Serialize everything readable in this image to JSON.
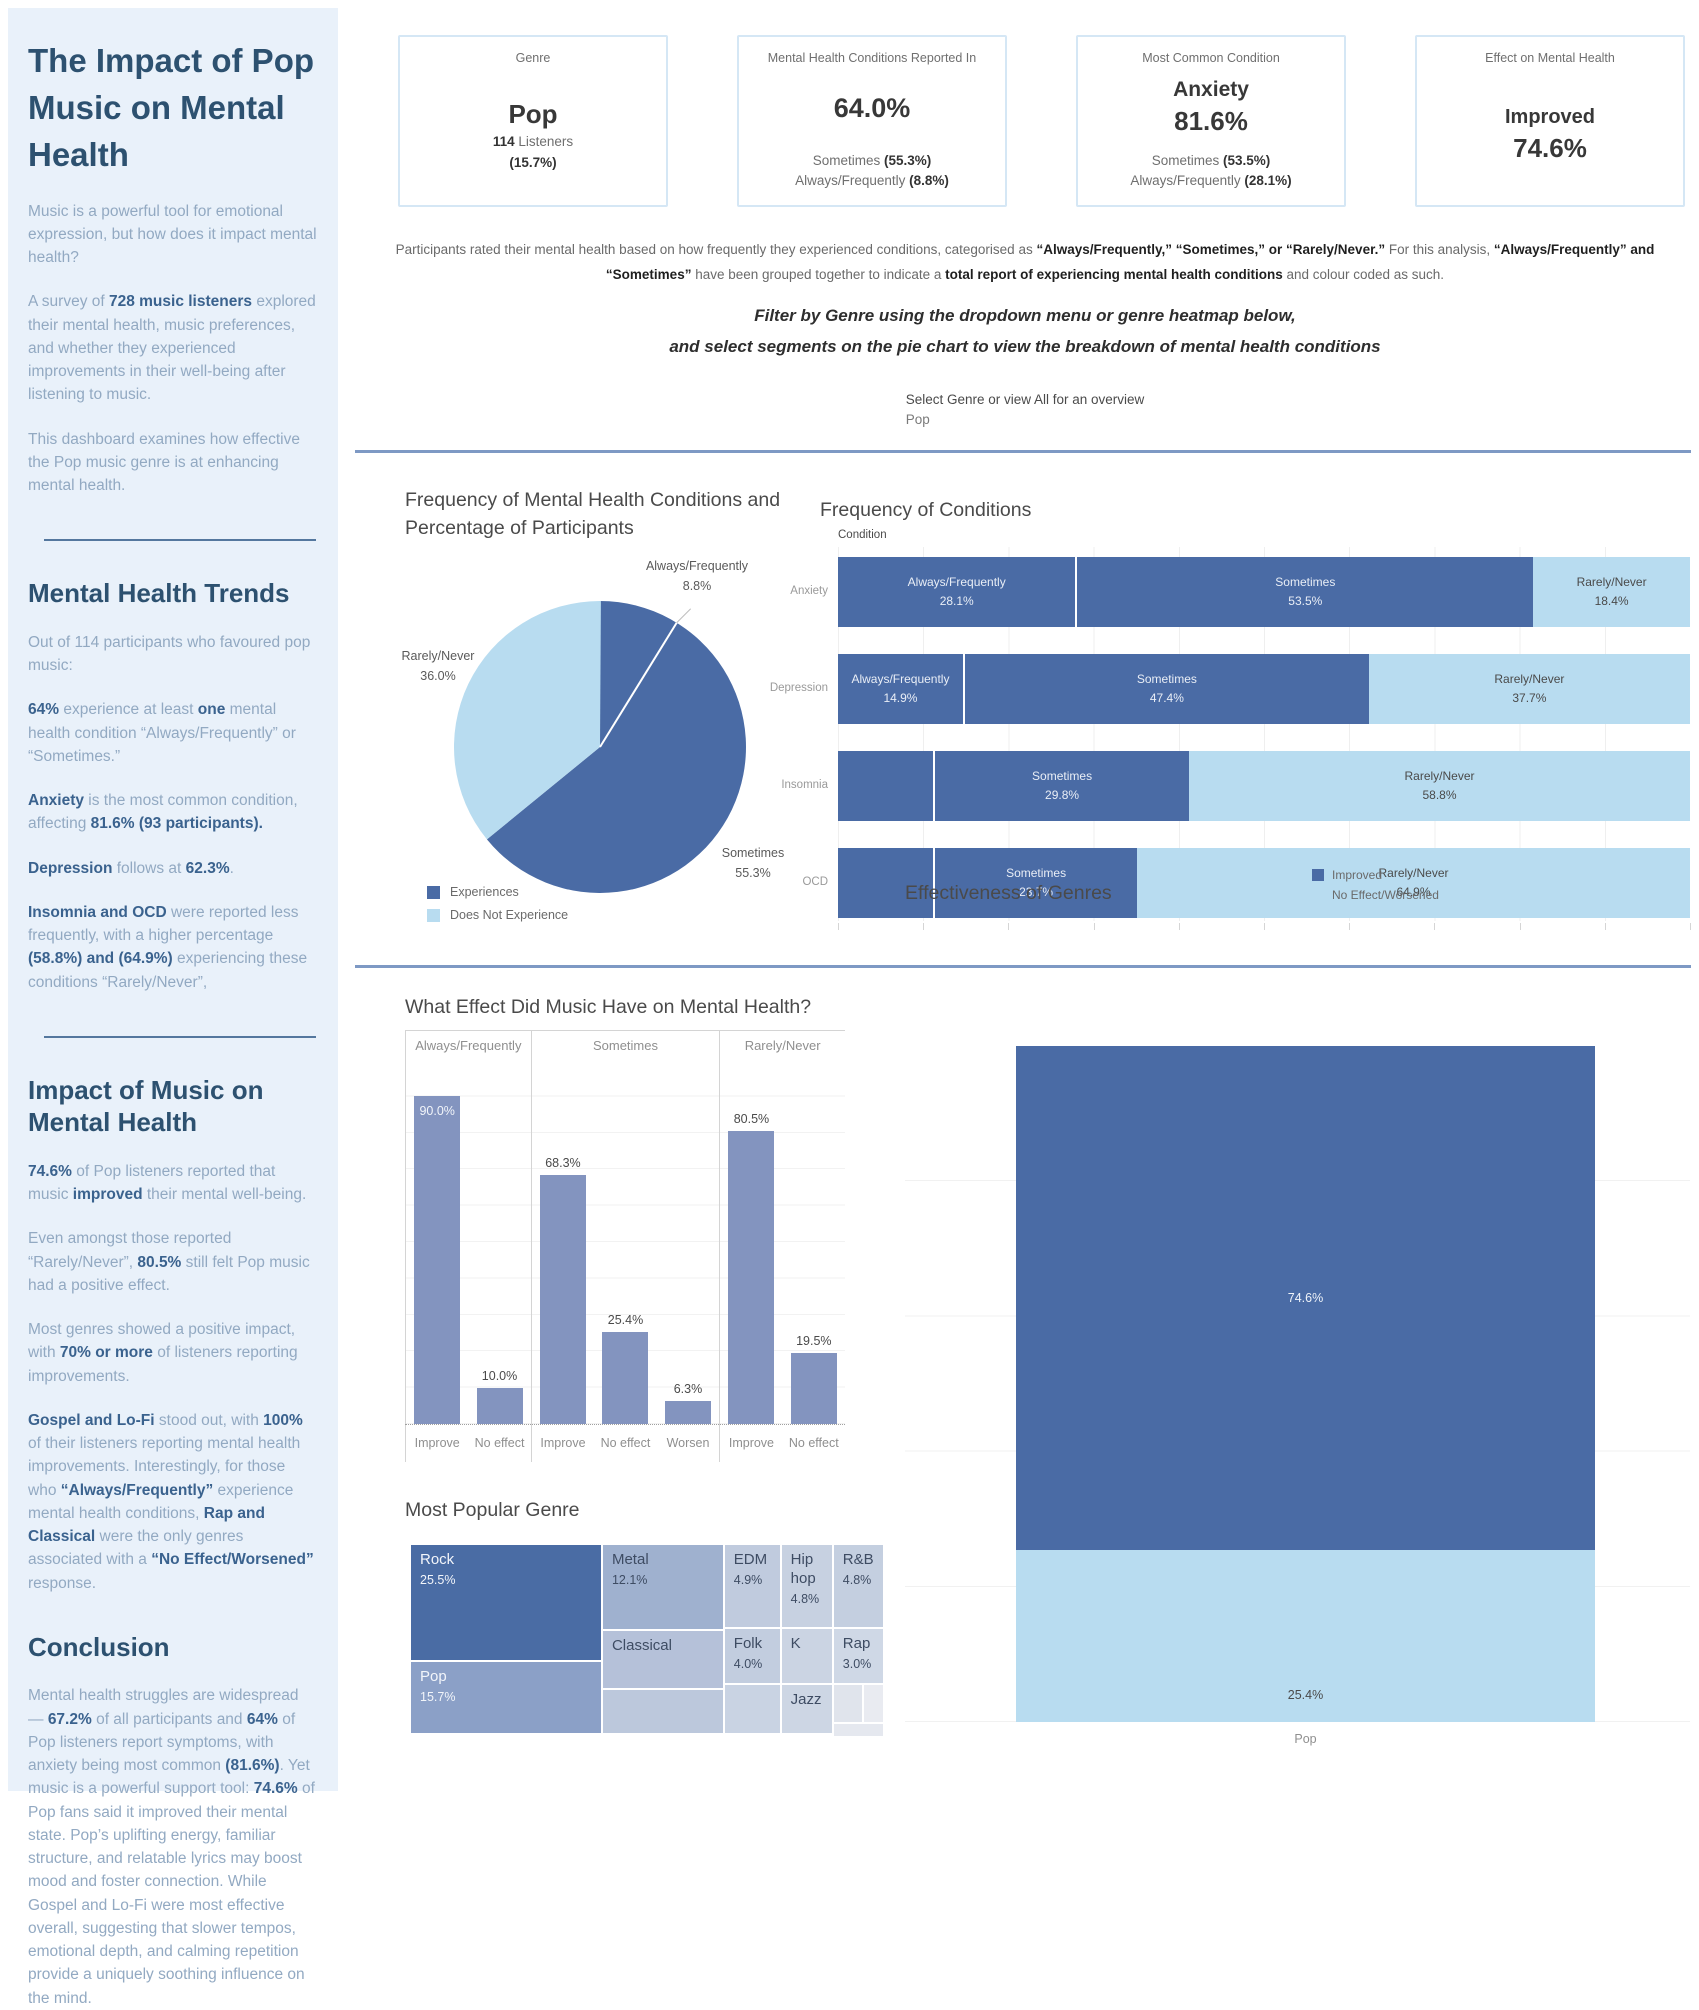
{
  "colors": {
    "dark": "#4A6BA5",
    "light": "#B8DCF0",
    "bar": "#8394BF",
    "divider": "#7E99C4"
  },
  "sidebar": {
    "title": "The Impact of Pop Music on Mental Health",
    "intro": [
      [
        {
          "t": "Music is a powerful tool for emotional expression, but how does it impact mental health?"
        }
      ],
      [
        {
          "t": "A survey of "
        },
        {
          "t": "728 music listeners",
          "b": 1
        },
        {
          "t": " explored their mental health, music preferences, and whether they experienced improvements in their well-being after listening to music."
        }
      ],
      [
        {
          "t": "This dashboard examines how effective the Pop music genre is at enhancing mental health."
        }
      ]
    ],
    "sections": [
      {
        "heading": "Mental Health Trends",
        "divider": true,
        "paragraphs": [
          [
            {
              "t": "Out of 114 participants who favoured pop music:"
            }
          ],
          [
            {
              "t": "64%",
              "b": 1
            },
            {
              "t": " experience at least "
            },
            {
              "t": "one",
              "b": 1
            },
            {
              "t": " mental health condition “Always/Frequently” or “Sometimes.”"
            }
          ],
          [
            {
              "t": "Anxiety",
              "b": 1
            },
            {
              "t": " is the most common condition, affecting "
            },
            {
              "t": "81.6% (93 participants).",
              "b": 1
            }
          ],
          [
            {
              "t": "Depression",
              "b": 1
            },
            {
              "t": " follows at "
            },
            {
              "t": "62.3%",
              "b": 1
            },
            {
              "t": "."
            }
          ],
          [
            {
              "t": "Insomnia and OCD",
              "b": 1
            },
            {
              "t": " were reported less frequently, with a higher percentage "
            },
            {
              "t": "(58.8%) and (64.9%)",
              "b": 1
            },
            {
              "t": " experiencing these conditions “Rarely/Never”,"
            }
          ]
        ]
      },
      {
        "heading": "Impact of Music on Mental Health",
        "divider": true,
        "paragraphs": [
          [
            {
              "t": "74.6%",
              "b": 1
            },
            {
              "t": " of Pop listeners reported that music "
            },
            {
              "t": "improved",
              "b": 1
            },
            {
              "t": " their mental well-being."
            }
          ],
          [
            {
              "t": "Even amongst those reported “Rarely/Never”, "
            },
            {
              "t": "80.5%",
              "b": 1
            },
            {
              "t": " still felt Pop music had a positive effect."
            }
          ],
          [
            {
              "t": "Most genres showed a positive impact, with "
            },
            {
              "t": "70% or more",
              "b": 1
            },
            {
              "t": " of listeners reporting improvements."
            }
          ],
          [
            {
              "t": "Gospel and Lo-Fi",
              "b": 1
            },
            {
              "t": " stood out, with "
            },
            {
              "t": "100%",
              "b": 1
            },
            {
              "t": " of their listeners reporting mental health improvements. Interestingly, for those who "
            },
            {
              "t": "“Always/Frequently”",
              "b": 1
            },
            {
              "t": " experience mental health conditions, "
            },
            {
              "t": "Rap and Classical",
              "b": 1
            },
            {
              "t": " were the only genres associated with a "
            },
            {
              "t": "“No Effect/Worsened”",
              "b": 1
            },
            {
              "t": " response."
            }
          ]
        ]
      },
      {
        "heading": "Conclusion",
        "divider": false,
        "paragraphs": [
          [
            {
              "t": "Mental health struggles are widespread — "
            },
            {
              "t": "67.2%",
              "b": 1
            },
            {
              "t": " of all participants and "
            },
            {
              "t": "64%",
              "b": 1
            },
            {
              "t": " of Pop listeners report symptoms, with anxiety being most common "
            },
            {
              "t": "(81.6%)",
              "b": 1
            },
            {
              "t": ". Yet music is a powerful support tool: "
            },
            {
              "t": "74.6%",
              "b": 1
            },
            {
              "t": " of Pop fans said it improved their mental state. Pop’s uplifting energy, familiar structure, and relatable lyrics may boost mood and foster connection. While Gospel and Lo-Fi were most effective overall, suggesting that slower tempos, emotional depth, and calming repetition provide a uniquely soothing influence on the mind."
            }
          ]
        ]
      }
    ]
  },
  "kpi_cards": [
    {
      "title": "Genre",
      "value_lines": [
        {
          "t": "Pop",
          "s": 26
        }
      ],
      "tight": true,
      "subs": [
        [
          {
            "t": "114 ",
            "b": 1
          },
          {
            "t": "Listeners"
          }
        ],
        [
          {
            "t": "(15.7%)",
            "b": 1
          }
        ]
      ]
    },
    {
      "title": "Mental Health Conditions Reported In",
      "value_lines": [
        {
          "t": "64.0%",
          "s": 27
        }
      ],
      "tight": false,
      "subs": [
        [
          {
            "t": "Sometimes "
          },
          {
            "t": "(55.3%)",
            "b": 1
          }
        ],
        [
          {
            "t": "Always/Frequently "
          },
          {
            "t": "(8.8%)",
            "b": 1
          }
        ]
      ]
    },
    {
      "title": "Most Common Condition",
      "value_lines": [
        {
          "t": "Anxiety",
          "s": 21
        },
        {
          "t": "81.6%",
          "s": 26
        }
      ],
      "tight": false,
      "subs": [
        [
          {
            "t": "Sometimes "
          },
          {
            "t": "(53.5%)",
            "b": 1
          }
        ],
        [
          {
            "t": "Always/Frequently "
          },
          {
            "t": "(28.1%)",
            "b": 1
          }
        ]
      ]
    },
    {
      "title": "Effect on Mental Health",
      "value_lines": [
        {
          "t": "Improved",
          "s": 20
        },
        {
          "t": "74.6%",
          "s": 26
        }
      ],
      "tight": false,
      "subs": []
    }
  ],
  "note": [
    {
      "t": "Participants rated their mental health based on how frequently they experienced conditions, categorised as "
    },
    {
      "t": "“Always/Frequently,” “Sometimes,” or “Rarely/Never.”",
      "b": 1
    },
    {
      "t": "  For this analysis, "
    },
    {
      "t": "“Always/Frequently” and “Sometimes”",
      "b": 1
    },
    {
      "t": " have been grouped together to indicate a "
    },
    {
      "t": "total report of experiencing mental health conditions",
      "b": 1
    },
    {
      "t": " and colour coded as such."
    }
  ],
  "instructions": [
    "Filter by Genre using the dropdown menu or genre heatmap below,",
    "and select segments on the pie chart to view the breakdown of mental health conditions"
  ],
  "genre_select": {
    "label": "Select Genre or view All for an overview",
    "value": "Pop"
  },
  "chart_data": [
    {
      "id": "pie",
      "type": "pie",
      "title": "Frequency of Mental Health Conditions and Percentage of Participants",
      "slices": [
        {
          "label": "Always/Frequently",
          "value": 8.8,
          "display": "8.8%",
          "color": "dark"
        },
        {
          "label": "Sometimes",
          "value": 55.3,
          "display": "55.3%",
          "color": "dark"
        },
        {
          "label": "Rarely/Never",
          "value": 36.0,
          "display": "36.0%",
          "color": "light"
        }
      ],
      "legend": [
        {
          "label": "Experiences",
          "color": "dark"
        },
        {
          "label": "Does Not Experience",
          "color": "light"
        }
      ]
    },
    {
      "id": "conditions",
      "type": "bar",
      "subtype": "horizontal-stacked",
      "xlim": [
        0,
        100
      ],
      "grid": true,
      "title": "Frequency of Conditions",
      "axis_label": "Condition",
      "categories": [
        "Anxiety",
        "Depression",
        "Insomnia",
        "OCD"
      ],
      "series": [
        {
          "name": "Always/Frequently",
          "color": "dark",
          "values": [
            28.1,
            14.9,
            11.4,
            11.4
          ],
          "labeled": [
            1,
            1,
            0,
            0
          ]
        },
        {
          "name": "Sometimes",
          "color": "dark",
          "values": [
            53.5,
            47.4,
            29.8,
            23.7
          ],
          "labeled": [
            1,
            1,
            1,
            1
          ]
        },
        {
          "name": "Rarely/Never",
          "color": "light",
          "values": [
            18.4,
            37.7,
            58.8,
            64.9
          ],
          "labeled": [
            1,
            1,
            1,
            1
          ]
        }
      ]
    },
    {
      "id": "effect",
      "type": "bar",
      "ylim": [
        0,
        100
      ],
      "grid": true,
      "title": "What Effect Did Music Have on Mental Health?",
      "panels": [
        {
          "header": "Always/Frequently",
          "bars": [
            {
              "category": "Improve",
              "value": 90.0,
              "inside": true
            },
            {
              "category": "No effect",
              "value": 10.0
            }
          ]
        },
        {
          "header": "Sometimes",
          "bars": [
            {
              "category": "Improve",
              "value": 68.3
            },
            {
              "category": "No effect",
              "value": 25.4
            },
            {
              "category": "Worsen",
              "value": 6.3
            }
          ]
        },
        {
          "header": "Rarely/Never",
          "bars": [
            {
              "category": "Improve",
              "value": 80.5
            },
            {
              "category": "No effect",
              "value": 19.5
            }
          ]
        }
      ]
    },
    {
      "id": "treemap",
      "type": "heatmap",
      "title": "Most Popular Genre",
      "cells": [
        {
          "label": "Rock",
          "pct": "25.5%",
          "x": 0,
          "y": 0,
          "w": 40.5,
          "h": 61.7,
          "fill": "#4A6CA4",
          "text": "light"
        },
        {
          "label": "Pop",
          "pct": "15.7%",
          "x": 0,
          "y": 61.7,
          "w": 40.5,
          "h": 38.3,
          "fill": "#8BA0C7",
          "text": "light"
        },
        {
          "label": "Metal",
          "pct": "12.1%",
          "x": 40.5,
          "y": 0,
          "w": 25.7,
          "h": 45.4,
          "fill": "#9FB1CF",
          "text": "dark"
        },
        {
          "label": "Classical",
          "pct": "",
          "x": 40.5,
          "y": 45.4,
          "w": 25.7,
          "h": 31.1,
          "fill": "#B5C1D9",
          "text": "dark"
        },
        {
          "label": "",
          "pct": "",
          "x": 40.5,
          "y": 76.5,
          "w": 25.7,
          "h": 23.5,
          "fill": "#BCC8DC",
          "text": "dark"
        },
        {
          "label": "EDM",
          "pct": "4.9%",
          "x": 66.2,
          "y": 0,
          "w": 12.0,
          "h": 44.3,
          "fill": "#C0CBDE",
          "text": "dark"
        },
        {
          "label": "Folk",
          "pct": "4.0%",
          "x": 66.2,
          "y": 44.3,
          "w": 12.0,
          "h": 29.5,
          "fill": "#C2CDDF",
          "text": "dark"
        },
        {
          "label": "",
          "pct": "",
          "x": 66.2,
          "y": 73.8,
          "w": 12.0,
          "h": 26.2,
          "fill": "#C9D3E3",
          "text": "dark"
        },
        {
          "label": "Hip hop",
          "pct": "4.8%",
          "x": 78.2,
          "y": 0,
          "w": 11.0,
          "h": 44.3,
          "fill": "#C7D1E1",
          "text": "dark"
        },
        {
          "label": "K",
          "pct": "",
          "x": 78.2,
          "y": 44.3,
          "w": 11.0,
          "h": 29.5,
          "fill": "#CBD4E3",
          "text": "dark"
        },
        {
          "label": "Jazz",
          "pct": "",
          "x": 78.2,
          "y": 73.8,
          "w": 11.0,
          "h": 26.2,
          "fill": "#CDD6E4",
          "text": "dark"
        },
        {
          "label": "R&B",
          "pct": "4.8%",
          "x": 89.2,
          "y": 0,
          "w": 10.8,
          "h": 44.3,
          "fill": "#C4CFE0",
          "text": "dark"
        },
        {
          "label": "Rap",
          "pct": "3.0%",
          "x": 89.2,
          "y": 44.3,
          "w": 10.8,
          "h": 29.5,
          "fill": "#CFD8E6",
          "text": "dark"
        },
        {
          "label": "",
          "pct": "",
          "x": 89.2,
          "y": 73.8,
          "w": 6.3,
          "h": 20.2,
          "fill": "#E0E4EC",
          "text": "dark"
        },
        {
          "label": "",
          "pct": "",
          "x": 95.5,
          "y": 73.8,
          "w": 4.5,
          "h": 20.2,
          "fill": "#E9EBF1",
          "text": "dark"
        },
        {
          "label": "",
          "pct": "",
          "x": 89.2,
          "y": 94.0,
          "w": 10.8,
          "h": 6.0,
          "fill": "#E5E8EF",
          "text": "dark"
        }
      ]
    },
    {
      "id": "effectiveness",
      "type": "bar",
      "subtype": "vertical-stacked",
      "ylim": [
        0,
        100
      ],
      "grid": true,
      "title": "Effectiveness of Genres",
      "categories": [
        "Pop"
      ],
      "series": [
        {
          "name": "Improved",
          "color": "dark",
          "values": [
            74.6
          ],
          "display": [
            "74.6%"
          ]
        },
        {
          "name": "No Effect/Worsened",
          "color": "light",
          "values": [
            25.4
          ],
          "display": [
            "25.4%"
          ]
        }
      ],
      "legend": [
        {
          "label": "Improved",
          "color": "dark"
        },
        {
          "label": "No Effect/Worsened",
          "color": "light"
        }
      ]
    }
  ]
}
